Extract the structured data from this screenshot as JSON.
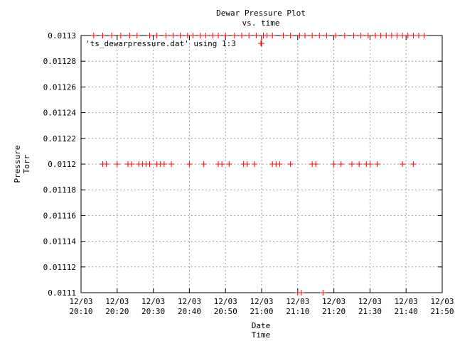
{
  "chart_data": {
    "type": "scatter",
    "title": [
      "Dewar Pressure Plot",
      "vs. time"
    ],
    "xlabel": [
      "Date",
      "Time"
    ],
    "ylabel": [
      "Pressure",
      "Torr"
    ],
    "legend": {
      "label": "'ts_dewarpressure.dat' using 1:3",
      "placement": "top-left"
    },
    "grid": true,
    "marker_color": "#ff0000",
    "marker": "plus",
    "xlim": [
      "12/03 20:10",
      "12/03 21:50"
    ],
    "ylim": [
      0.0111,
      0.0113
    ],
    "x_ticks": [
      {
        "value": "12/03 20:10",
        "date": "12/03",
        "time": "20:10"
      },
      {
        "value": "12/03 20:20",
        "date": "12/03",
        "time": "20:20"
      },
      {
        "value": "12/03 20:30",
        "date": "12/03",
        "time": "20:30"
      },
      {
        "value": "12/03 20:40",
        "date": "12/03",
        "time": "20:40"
      },
      {
        "value": "12/03 20:50",
        "date": "12/03",
        "time": "20:50"
      },
      {
        "value": "12/03 21:00",
        "date": "12/03",
        "time": "21:00"
      },
      {
        "value": "12/03 21:10",
        "date": "12/03",
        "time": "21:10"
      },
      {
        "value": "12/03 21:20",
        "date": "12/03",
        "time": "21:20"
      },
      {
        "value": "12/03 21:30",
        "date": "12/03",
        "time": "21:30"
      },
      {
        "value": "12/03 21:40",
        "date": "12/03",
        "time": "21:40"
      },
      {
        "value": "12/03 21:50",
        "date": "12/03",
        "time": "21:50"
      }
    ],
    "y_ticks": [
      {
        "value": 0.0111,
        "label": "0.0111"
      },
      {
        "value": 0.01112,
        "label": "0.01112"
      },
      {
        "value": 0.01114,
        "label": "0.01114"
      },
      {
        "value": 0.01116,
        "label": "0.01116"
      },
      {
        "value": 0.01118,
        "label": "0.01118"
      },
      {
        "value": 0.0112,
        "label": "0.0112"
      },
      {
        "value": 0.01122,
        "label": "0.01122"
      },
      {
        "value": 0.01124,
        "label": "0.01124"
      },
      {
        "value": 0.01126,
        "label": "0.01126"
      },
      {
        "value": 0.01128,
        "label": "0.01128"
      },
      {
        "value": 0.0113,
        "label": "0.0113"
      }
    ],
    "series": [
      {
        "x": [
          "12/03 20:13:30",
          "12/03 20:16:00",
          "12/03 20:18:30",
          "12/03 20:21:00",
          "12/03 20:23:30",
          "12/03 20:25:30",
          "12/03 20:29:00",
          "12/03 20:31:00",
          "12/03 20:33:30",
          "12/03 20:35:30",
          "12/03 20:37:30",
          "12/03 20:39:30",
          "12/03 20:41:00",
          "12/03 20:43:00",
          "12/03 20:44:30",
          "12/03 20:46:30",
          "12/03 20:48:00",
          "12/03 20:50:00",
          "12/03 20:52:30",
          "12/03 20:54:30",
          "12/03 20:56:30",
          "12/03 20:58:30",
          "12/03 21:00:30",
          "12/03 21:01:30",
          "12/03 21:03:00",
          "12/03 21:06:00",
          "12/03 21:08:00",
          "12/03 21:10:30",
          "12/03 21:12:00",
          "12/03 21:14:00",
          "12/03 21:16:00",
          "12/03 21:18:00",
          "12/03 21:20:30",
          "12/03 21:23:00",
          "12/03 21:25:30",
          "12/03 21:27:30",
          "12/03 21:29:30",
          "12/03 21:31:30",
          "12/03 21:33:00",
          "12/03 21:34:30",
          "12/03 21:36:00",
          "12/03 21:37:30",
          "12/03 21:39:00",
          "12/03 21:40:30",
          "12/03 21:42:00",
          "12/03 21:43:30",
          "12/03 21:45:00"
        ],
        "y": [
          0.0113,
          0.0113,
          0.0113,
          0.0113,
          0.0113,
          0.0113,
          0.0113,
          0.0113,
          0.0113,
          0.0113,
          0.0113,
          0.0113,
          0.0113,
          0.0113,
          0.0113,
          0.0113,
          0.0113,
          0.0113,
          0.0113,
          0.0113,
          0.0113,
          0.0113,
          0.0113,
          0.0113,
          0.0113,
          0.0113,
          0.0113,
          0.0113,
          0.0113,
          0.0113,
          0.0113,
          0.0113,
          0.0113,
          0.0113,
          0.0113,
          0.0113,
          0.0113,
          0.0113,
          0.0113,
          0.0113,
          0.0113,
          0.0113,
          0.0113,
          0.0113,
          0.0113,
          0.0113,
          0.0113
        ]
      },
      {
        "x": [
          "12/03 20:16:00",
          "12/03 20:17:00",
          "12/03 20:20:00",
          "12/03 20:23:00",
          "12/03 20:24:00",
          "12/03 20:26:00",
          "12/03 20:27:00",
          "12/03 20:28:00",
          "12/03 20:29:00",
          "12/03 20:31:00",
          "12/03 20:32:00",
          "12/03 20:33:00",
          "12/03 20:35:00",
          "12/03 20:40:00",
          "12/03 20:44:00",
          "12/03 20:48:00",
          "12/03 20:49:00",
          "12/03 20:51:00",
          "12/03 20:55:00",
          "12/03 20:56:00",
          "12/03 20:58:00",
          "12/03 21:03:00",
          "12/03 21:04:00",
          "12/03 21:05:00",
          "12/03 21:08:00",
          "12/03 21:14:00",
          "12/03 21:15:00",
          "12/03 21:20:00",
          "12/03 21:22:00",
          "12/03 21:25:00",
          "12/03 21:27:00",
          "12/03 21:29:00",
          "12/03 21:30:00",
          "12/03 21:32:00",
          "12/03 21:39:00",
          "12/03 21:42:00"
        ],
        "y": [
          0.0112,
          0.0112,
          0.0112,
          0.0112,
          0.0112,
          0.0112,
          0.0112,
          0.0112,
          0.0112,
          0.0112,
          0.0112,
          0.0112,
          0.0112,
          0.0112,
          0.0112,
          0.0112,
          0.0112,
          0.0112,
          0.0112,
          0.0112,
          0.0112,
          0.0112,
          0.0112,
          0.0112,
          0.0112,
          0.0112,
          0.0112,
          0.0112,
          0.0112,
          0.0112,
          0.0112,
          0.0112,
          0.0112,
          0.0112,
          0.0112,
          0.0112
        ]
      },
      {
        "x": [
          "12/03 21:00:00",
          "12/03 21:10:00",
          "12/03 21:11:00",
          "12/03 21:17:00"
        ],
        "y": [
          0.0112939,
          0.0111,
          0.0111,
          0.0111
        ]
      }
    ]
  }
}
